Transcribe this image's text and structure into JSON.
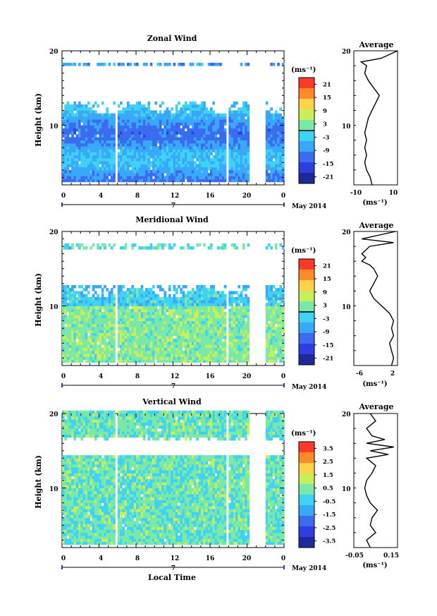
{
  "chart_data": [
    {
      "type": "heatmap",
      "title": "Zonal Wind",
      "ylabel": "Height (km)",
      "xlabel": "",
      "x_ticks": [
        "0",
        "4",
        "8",
        "12",
        "16",
        "20",
        "0"
      ],
      "y_ticks": [
        "20",
        "10"
      ],
      "ylim": [
        2,
        20
      ],
      "xlim": [
        0,
        24
      ],
      "date_marker": "7",
      "date_label": "May 2014",
      "colorbar": {
        "unit": "(ms⁻¹)",
        "ticks": [
          "21",
          "15",
          "9",
          "3",
          "-3",
          "-9",
          "-15",
          "-21"
        ],
        "range": [
          -24,
          24
        ],
        "zero_line": true
      },
      "colors": {
        "cb": [
          "#ff3a2a",
          "#ff8a2a",
          "#ffd24a",
          "#c8ee5a",
          "#7ae8a6",
          "#3ed2f4",
          "#39a8f8",
          "#3b6cf0",
          "#2e3ee0",
          "#1f2a9a"
        ]
      },
      "average": {
        "title": "Average",
        "x_ticks": [
          "-10",
          "10"
        ],
        "xlim": [
          -12,
          12
        ],
        "y_ticks": [
          "20",
          "10"
        ],
        "unit": "(ms⁻¹)",
        "profile": {
          "h": [
            2,
            3,
            4,
            5,
            6,
            7,
            8,
            9,
            10,
            11,
            12,
            13,
            14,
            15,
            16,
            17,
            18,
            18.5,
            19,
            20
          ],
          "v": [
            -2,
            -3,
            -5,
            -6,
            -5,
            -6,
            -5,
            -6,
            -5,
            -4,
            -2,
            0,
            2,
            -1,
            -4,
            -6,
            -5,
            -8,
            3,
            12
          ]
        }
      }
    },
    {
      "type": "heatmap",
      "title": "Meridional Wind",
      "ylabel": "Height (km)",
      "xlabel": "",
      "x_ticks": [
        "0",
        "4",
        "8",
        "12",
        "16",
        "20",
        "0"
      ],
      "y_ticks": [
        "20",
        "10"
      ],
      "ylim": [
        2,
        20
      ],
      "xlim": [
        0,
        24
      ],
      "date_marker": "7",
      "date_label": "May 2014",
      "colorbar": {
        "unit": "(ms⁻¹)",
        "ticks": [
          "21",
          "15",
          "9",
          "3",
          "-3",
          "-9",
          "-15",
          "-21"
        ],
        "range": [
          -24,
          24
        ],
        "zero_line": true
      },
      "average": {
        "title": "Average",
        "x_ticks": [
          "-6",
          "2"
        ],
        "xlim": [
          -8,
          3
        ],
        "y_ticks": [
          "20",
          "10"
        ],
        "unit": "(ms⁻¹)",
        "profile": {
          "h": [
            2,
            3,
            4,
            5,
            6,
            7,
            8,
            9,
            10,
            11,
            12,
            13,
            14,
            15,
            15.5,
            16,
            16.5,
            17,
            18,
            18.5,
            19,
            20
          ],
          "v": [
            1.5,
            2,
            1.5,
            1,
            2,
            1.5,
            2,
            1,
            -1,
            -3,
            -4,
            -3,
            -2,
            -3,
            -4,
            -6,
            -5,
            -6,
            -4,
            2,
            -6,
            2.5
          ]
        }
      }
    },
    {
      "type": "heatmap",
      "title": "Vertical Wind",
      "ylabel": "Height (km)",
      "xlabel": "Local Time",
      "x_ticks": [
        "0",
        "4",
        "8",
        "12",
        "16",
        "20",
        "0"
      ],
      "y_ticks": [
        "20",
        "10"
      ],
      "ylim": [
        2,
        20
      ],
      "xlim": [
        0,
        24
      ],
      "date_marker": "7",
      "date_label": "May 2014",
      "colorbar": {
        "unit": "(ms⁻¹)",
        "ticks": [
          "3.5",
          "2.5",
          "1.5",
          "0.5",
          "-0.5",
          "-1.5",
          "-2.5",
          "-3.5"
        ],
        "range": [
          -4,
          4
        ],
        "zero_line": false
      },
      "average": {
        "title": "Average",
        "x_ticks": [
          "-0.05",
          "0.15"
        ],
        "xlim": [
          -0.07,
          0.17
        ],
        "y_ticks": [
          "20",
          "10"
        ],
        "unit": "(ms⁻¹)",
        "profile": {
          "h": [
            2,
            3,
            4,
            5,
            6,
            7,
            8,
            9,
            10,
            11,
            12,
            13,
            14,
            14.5,
            15,
            15.5,
            16,
            16.5,
            17,
            18,
            19,
            20
          ],
          "v": [
            0.02,
            0.0,
            0.05,
            0.02,
            0.03,
            0.06,
            0.02,
            0.0,
            -0.01,
            0.0,
            0.03,
            0.05,
            0.0,
            0.12,
            0.02,
            0.15,
            0.0,
            0.1,
            0.03,
            0.0,
            0.05,
            0.02
          ]
        }
      }
    }
  ]
}
